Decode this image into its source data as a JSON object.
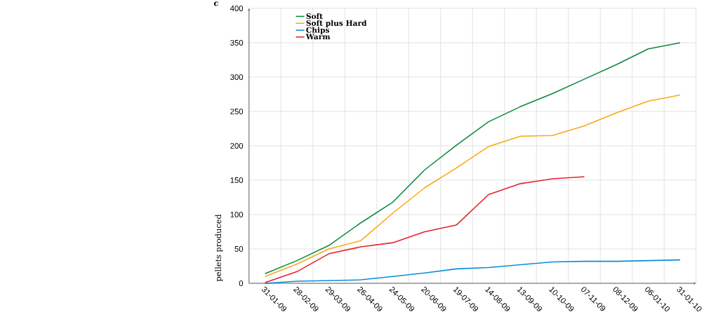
{
  "chart_data": {
    "type": "line",
    "title": "c",
    "ylabel": "pellets produced",
    "categories": [
      "31-01-09",
      "28-02-09",
      "29-03-09",
      "26-04-09",
      "24-05-09",
      "20-06-09",
      "19-07-09",
      "14-08-09",
      "13-09-09",
      "10-10-09",
      "07-11-09",
      "08-12-09",
      "06-01-10",
      "31-01-10"
    ],
    "series": [
      {
        "name": "Soft",
        "color": "#0a8a3e",
        "values": [
          14,
          33,
          55,
          88,
          118,
          165,
          201,
          235,
          257,
          276,
          297,
          318,
          341,
          350
        ]
      },
      {
        "name": "Soft plus Hard",
        "color": "#f9a912",
        "values": [
          10,
          28,
          50,
          62,
          102,
          139,
          168,
          199,
          214,
          215,
          229,
          248,
          265,
          274
        ]
      },
      {
        "name": "Chips",
        "color": "#0b8ed8",
        "values": [
          0,
          3,
          4,
          5,
          10,
          15,
          21,
          23,
          27,
          31,
          32,
          32,
          33,
          34
        ]
      },
      {
        "name": "Warm",
        "color": "#e8202a",
        "values": [
          1,
          17,
          43,
          53,
          59,
          75,
          85,
          129,
          145,
          152,
          155,
          null,
          null,
          null
        ]
      }
    ],
    "ylim": [
      0,
      400
    ],
    "yticks": [
      0,
      50,
      100,
      150,
      200,
      250,
      300,
      350,
      400
    ],
    "grid": true,
    "legend": "top left",
    "marker": "none",
    "line_style": "solid"
  }
}
